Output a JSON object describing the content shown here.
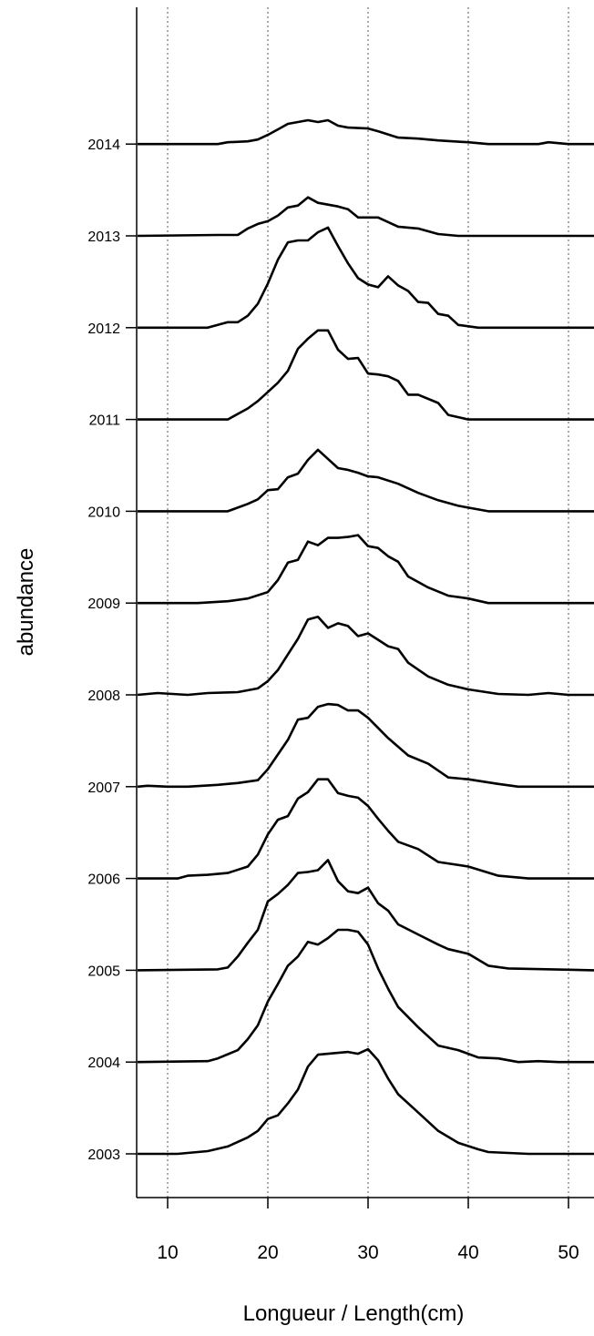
{
  "chart_data": {
    "type": "line",
    "title": "",
    "xlabel": "Longueur / Length(cm)",
    "ylabel": "abundance",
    "xlim": [
      7,
      53
    ],
    "x_ticks": [
      10,
      20,
      30,
      40,
      50
    ],
    "x_tick_labels": [
      "10",
      "20",
      "30",
      "40",
      "50"
    ],
    "vertical_dotted_gridlines_at": [
      10,
      20,
      30,
      40,
      50
    ],
    "layout": "stacked ridgeline, one curve per year, y offset per year; values are relative heights in units of the spacing between years",
    "series": [
      {
        "name": "2003",
        "points": [
          [
            7,
            0
          ],
          [
            11,
            0
          ],
          [
            14,
            0.03
          ],
          [
            16,
            0.08
          ],
          [
            18,
            0.18
          ],
          [
            19,
            0.25
          ],
          [
            20,
            0.38
          ],
          [
            21,
            0.42
          ],
          [
            22,
            0.55
          ],
          [
            23,
            0.7
          ],
          [
            24,
            0.95
          ],
          [
            25,
            1.08
          ],
          [
            26,
            1.09
          ],
          [
            27,
            1.1
          ],
          [
            28,
            1.11
          ],
          [
            29,
            1.09
          ],
          [
            30,
            1.14
          ],
          [
            31,
            1.02
          ],
          [
            32,
            0.82
          ],
          [
            33,
            0.65
          ],
          [
            35,
            0.45
          ],
          [
            37,
            0.25
          ],
          [
            39,
            0.12
          ],
          [
            41,
            0.05
          ],
          [
            42,
            0.02
          ],
          [
            44,
            0.01
          ],
          [
            46,
            0
          ],
          [
            53,
            0
          ]
        ]
      },
      {
        "name": "2004",
        "points": [
          [
            7,
            0
          ],
          [
            14,
            0.01
          ],
          [
            15,
            0.04
          ],
          [
            17,
            0.13
          ],
          [
            18,
            0.25
          ],
          [
            19,
            0.4
          ],
          [
            20,
            0.66
          ],
          [
            21,
            0.85
          ],
          [
            22,
            1.05
          ],
          [
            23,
            1.15
          ],
          [
            24,
            1.31
          ],
          [
            25,
            1.28
          ],
          [
            26,
            1.35
          ],
          [
            27,
            1.44
          ],
          [
            28,
            1.44
          ],
          [
            29,
            1.42
          ],
          [
            30,
            1.28
          ],
          [
            31,
            1.02
          ],
          [
            32,
            0.8
          ],
          [
            33,
            0.6
          ],
          [
            35,
            0.38
          ],
          [
            37,
            0.18
          ],
          [
            39,
            0.13
          ],
          [
            41,
            0.05
          ],
          [
            43,
            0.04
          ],
          [
            45,
            0
          ],
          [
            47,
            0.01
          ],
          [
            49,
            0
          ],
          [
            53,
            0
          ]
        ]
      },
      {
        "name": "2005",
        "points": [
          [
            7,
            0
          ],
          [
            15,
            0.01
          ],
          [
            16,
            0.03
          ],
          [
            17,
            0.15
          ],
          [
            18,
            0.3
          ],
          [
            19,
            0.44
          ],
          [
            20,
            0.75
          ],
          [
            21,
            0.83
          ],
          [
            22,
            0.93
          ],
          [
            23,
            1.06
          ],
          [
            24,
            1.07
          ],
          [
            25,
            1.09
          ],
          [
            26,
            1.2
          ],
          [
            27,
            0.97
          ],
          [
            28,
            0.86
          ],
          [
            29,
            0.84
          ],
          [
            30,
            0.9
          ],
          [
            31,
            0.73
          ],
          [
            32,
            0.65
          ],
          [
            33,
            0.5
          ],
          [
            35,
            0.39
          ],
          [
            37,
            0.28
          ],
          [
            38,
            0.23
          ],
          [
            40,
            0.18
          ],
          [
            42,
            0.05
          ],
          [
            44,
            0.02
          ],
          [
            53,
            0
          ]
        ]
      },
      {
        "name": "2006",
        "points": [
          [
            7,
            0
          ],
          [
            11,
            0
          ],
          [
            12,
            0.03
          ],
          [
            14,
            0.04
          ],
          [
            16,
            0.06
          ],
          [
            18,
            0.13
          ],
          [
            19,
            0.26
          ],
          [
            20,
            0.48
          ],
          [
            21,
            0.64
          ],
          [
            22,
            0.68
          ],
          [
            23,
            0.87
          ],
          [
            24,
            0.94
          ],
          [
            25,
            1.08
          ],
          [
            26,
            1.08
          ],
          [
            27,
            0.93
          ],
          [
            28,
            0.9
          ],
          [
            29,
            0.88
          ],
          [
            30,
            0.79
          ],
          [
            31,
            0.65
          ],
          [
            32,
            0.52
          ],
          [
            33,
            0.4
          ],
          [
            35,
            0.32
          ],
          [
            37,
            0.18
          ],
          [
            40,
            0.13
          ],
          [
            43,
            0.03
          ],
          [
            46,
            0
          ],
          [
            53,
            0
          ]
        ]
      },
      {
        "name": "2007",
        "points": [
          [
            7,
            0
          ],
          [
            8,
            0.01
          ],
          [
            10,
            0
          ],
          [
            12,
            0
          ],
          [
            15,
            0.02
          ],
          [
            17,
            0.04
          ],
          [
            19,
            0.07
          ],
          [
            20,
            0.19
          ],
          [
            21,
            0.35
          ],
          [
            22,
            0.51
          ],
          [
            23,
            0.73
          ],
          [
            24,
            0.75
          ],
          [
            25,
            0.87
          ],
          [
            26,
            0.9
          ],
          [
            27,
            0.89
          ],
          [
            28,
            0.83
          ],
          [
            29,
            0.83
          ],
          [
            30,
            0.75
          ],
          [
            31,
            0.64
          ],
          [
            32,
            0.53
          ],
          [
            34,
            0.34
          ],
          [
            36,
            0.25
          ],
          [
            38,
            0.1
          ],
          [
            40,
            0.08
          ],
          [
            43,
            0.03
          ],
          [
            45,
            0
          ],
          [
            53,
            0
          ]
        ]
      },
      {
        "name": "2008",
        "points": [
          [
            7,
            0
          ],
          [
            9,
            0.02
          ],
          [
            12,
            0
          ],
          [
            14,
            0.02
          ],
          [
            17,
            0.03
          ],
          [
            19,
            0.07
          ],
          [
            20,
            0.15
          ],
          [
            21,
            0.27
          ],
          [
            22,
            0.44
          ],
          [
            23,
            0.61
          ],
          [
            24,
            0.82
          ],
          [
            25,
            0.85
          ],
          [
            26,
            0.73
          ],
          [
            27,
            0.78
          ],
          [
            28,
            0.75
          ],
          [
            29,
            0.64
          ],
          [
            30,
            0.67
          ],
          [
            31,
            0.6
          ],
          [
            32,
            0.53
          ],
          [
            33,
            0.5
          ],
          [
            34,
            0.35
          ],
          [
            36,
            0.2
          ],
          [
            38,
            0.11
          ],
          [
            40,
            0.06
          ],
          [
            43,
            0.01
          ],
          [
            46,
            0
          ],
          [
            48,
            0.02
          ],
          [
            50,
            0
          ],
          [
            53,
            0
          ]
        ]
      },
      {
        "name": "2009",
        "points": [
          [
            7,
            0
          ],
          [
            13,
            0
          ],
          [
            16,
            0.02
          ],
          [
            18,
            0.05
          ],
          [
            20,
            0.12
          ],
          [
            21,
            0.25
          ],
          [
            22,
            0.44
          ],
          [
            23,
            0.47
          ],
          [
            24,
            0.67
          ],
          [
            25,
            0.63
          ],
          [
            26,
            0.71
          ],
          [
            27,
            0.71
          ],
          [
            28,
            0.72
          ],
          [
            29,
            0.74
          ],
          [
            30,
            0.62
          ],
          [
            31,
            0.6
          ],
          [
            32,
            0.51
          ],
          [
            33,
            0.45
          ],
          [
            34,
            0.29
          ],
          [
            36,
            0.17
          ],
          [
            38,
            0.08
          ],
          [
            40,
            0.05
          ],
          [
            42,
            0
          ],
          [
            53,
            0
          ]
        ]
      },
      {
        "name": "2010",
        "points": [
          [
            7,
            0
          ],
          [
            16,
            0
          ],
          [
            18,
            0.08
          ],
          [
            19,
            0.13
          ],
          [
            20,
            0.23
          ],
          [
            21,
            0.24
          ],
          [
            22,
            0.37
          ],
          [
            23,
            0.41
          ],
          [
            24,
            0.56
          ],
          [
            25,
            0.67
          ],
          [
            26,
            0.57
          ],
          [
            27,
            0.47
          ],
          [
            28,
            0.45
          ],
          [
            29,
            0.42
          ],
          [
            30,
            0.38
          ],
          [
            31,
            0.37
          ],
          [
            33,
            0.3
          ],
          [
            35,
            0.2
          ],
          [
            37,
            0.12
          ],
          [
            39,
            0.06
          ],
          [
            42,
            0
          ],
          [
            53,
            0
          ]
        ]
      },
      {
        "name": "2011",
        "points": [
          [
            7,
            0
          ],
          [
            16,
            0
          ],
          [
            18,
            0.12
          ],
          [
            19,
            0.2
          ],
          [
            20,
            0.3
          ],
          [
            21,
            0.4
          ],
          [
            22,
            0.53
          ],
          [
            23,
            0.77
          ],
          [
            24,
            0.88
          ],
          [
            25,
            0.97
          ],
          [
            26,
            0.97
          ],
          [
            27,
            0.76
          ],
          [
            28,
            0.66
          ],
          [
            29,
            0.67
          ],
          [
            30,
            0.5
          ],
          [
            31,
            0.49
          ],
          [
            32,
            0.47
          ],
          [
            33,
            0.42
          ],
          [
            34,
            0.27
          ],
          [
            35,
            0.27
          ],
          [
            37,
            0.18
          ],
          [
            38,
            0.05
          ],
          [
            40,
            0
          ],
          [
            53,
            0
          ]
        ]
      },
      {
        "name": "2012",
        "points": [
          [
            7,
            0
          ],
          [
            14,
            0
          ],
          [
            15,
            0.03
          ],
          [
            16,
            0.06
          ],
          [
            17,
            0.06
          ],
          [
            18,
            0.13
          ],
          [
            19,
            0.26
          ],
          [
            20,
            0.48
          ],
          [
            21,
            0.74
          ],
          [
            22,
            0.93
          ],
          [
            23,
            0.95
          ],
          [
            24,
            0.95
          ],
          [
            25,
            1.04
          ],
          [
            26,
            1.09
          ],
          [
            27,
            0.89
          ],
          [
            28,
            0.7
          ],
          [
            29,
            0.54
          ],
          [
            30,
            0.47
          ],
          [
            31,
            0.44
          ],
          [
            32,
            0.56
          ],
          [
            33,
            0.46
          ],
          [
            34,
            0.4
          ],
          [
            35,
            0.28
          ],
          [
            36,
            0.27
          ],
          [
            37,
            0.15
          ],
          [
            38,
            0.13
          ],
          [
            39,
            0.03
          ],
          [
            41,
            0
          ],
          [
            53,
            0
          ]
        ]
      },
      {
        "name": "2013",
        "points": [
          [
            7,
            0
          ],
          [
            15,
            0.01
          ],
          [
            17,
            0.01
          ],
          [
            18,
            0.08
          ],
          [
            19,
            0.13
          ],
          [
            20,
            0.16
          ],
          [
            21,
            0.22
          ],
          [
            22,
            0.31
          ],
          [
            23,
            0.33
          ],
          [
            24,
            0.42
          ],
          [
            25,
            0.36
          ],
          [
            26,
            0.34
          ],
          [
            27,
            0.32
          ],
          [
            28,
            0.29
          ],
          [
            29,
            0.2
          ],
          [
            31,
            0.2
          ],
          [
            33,
            0.1
          ],
          [
            35,
            0.08
          ],
          [
            37,
            0.02
          ],
          [
            39,
            0
          ],
          [
            53,
            0
          ]
        ]
      },
      {
        "name": "2014",
        "points": [
          [
            7,
            0
          ],
          [
            15,
            0
          ],
          [
            16,
            0.02
          ],
          [
            18,
            0.03
          ],
          [
            19,
            0.05
          ],
          [
            20,
            0.1
          ],
          [
            21,
            0.16
          ],
          [
            22,
            0.22
          ],
          [
            23,
            0.24
          ],
          [
            24,
            0.26
          ],
          [
            25,
            0.24
          ],
          [
            26,
            0.26
          ],
          [
            27,
            0.2
          ],
          [
            28,
            0.18
          ],
          [
            30,
            0.17
          ],
          [
            31,
            0.14
          ],
          [
            33,
            0.07
          ],
          [
            35,
            0.06
          ],
          [
            37,
            0.04
          ],
          [
            40,
            0.02
          ],
          [
            42,
            0
          ],
          [
            47,
            0
          ],
          [
            48,
            0.02
          ],
          [
            50,
            0
          ],
          [
            53,
            0
          ]
        ]
      }
    ]
  }
}
